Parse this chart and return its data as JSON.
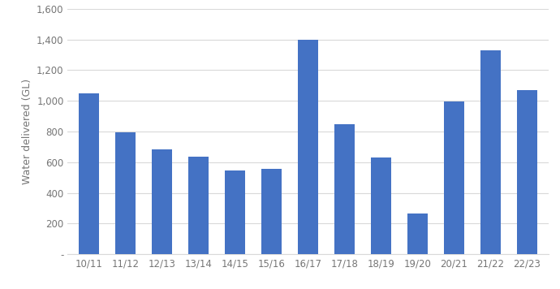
{
  "categories": [
    "10/11",
    "11/12",
    "12/13",
    "13/14",
    "14/15",
    "15/16",
    "16/17",
    "17/18",
    "18/19",
    "19/20",
    "20/21",
    "21/22",
    "22/23"
  ],
  "values": [
    1050,
    795,
    685,
    635,
    545,
    555,
    1400,
    848,
    630,
    265,
    993,
    1330,
    1070
  ],
  "bar_color": "#4472C4",
  "ylabel": "Water delivered (GL)",
  "ylim": [
    0,
    1600
  ],
  "yticks": [
    0,
    200,
    400,
    600,
    800,
    1000,
    1200,
    1400,
    1600
  ],
  "ytick_labels": [
    "-",
    "200",
    "400",
    "600",
    "800",
    "1,000",
    "1,200",
    "1,400",
    "1,600"
  ],
  "background_color": "#ffffff",
  "grid_color": "#d9d9d9",
  "bar_width": 0.55,
  "label_fontsize": 9,
  "tick_fontsize": 8.5
}
